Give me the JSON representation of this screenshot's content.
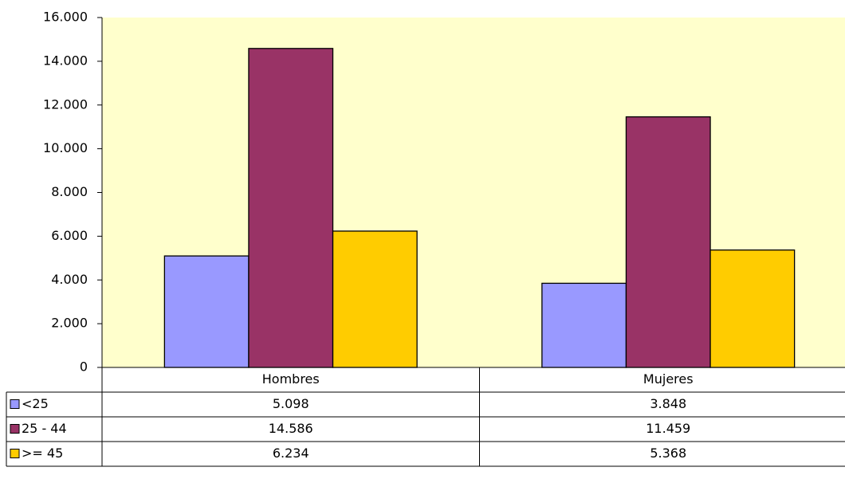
{
  "chart_data": {
    "type": "bar",
    "categories": [
      "Hombres",
      "Mujeres"
    ],
    "series": [
      {
        "name": "<25",
        "color": "#9999ff",
        "values": [
          5098,
          3848
        ],
        "value_labels": [
          "5.098",
          "3.848"
        ]
      },
      {
        "name": "25 - 44",
        "color": "#993366",
        "values": [
          14586,
          11459
        ],
        "value_labels": [
          "14.586",
          "11.459"
        ]
      },
      {
        "name": ">= 45",
        "color": "#ffcc00",
        "values": [
          6234,
          5368
        ],
        "value_labels": [
          "6.234",
          "5.368"
        ]
      }
    ],
    "ylim": [
      0,
      16000
    ],
    "yticks": [
      0,
      {
        "value": 2000,
        "label": "2.000"
      },
      {
        "value": 4000,
        "label": "4.000"
      },
      {
        "value": 6000,
        "label": "6.000"
      },
      {
        "value": 8000,
        "label": "8.000"
      },
      {
        "value": 10000,
        "label": "10.000"
      },
      {
        "value": 12000,
        "label": "12.000"
      },
      {
        "value": 14000,
        "label": "14.000"
      },
      {
        "value": 16000,
        "label": "16.000"
      }
    ],
    "plot_background": "#ffffcc",
    "data_table": true
  }
}
